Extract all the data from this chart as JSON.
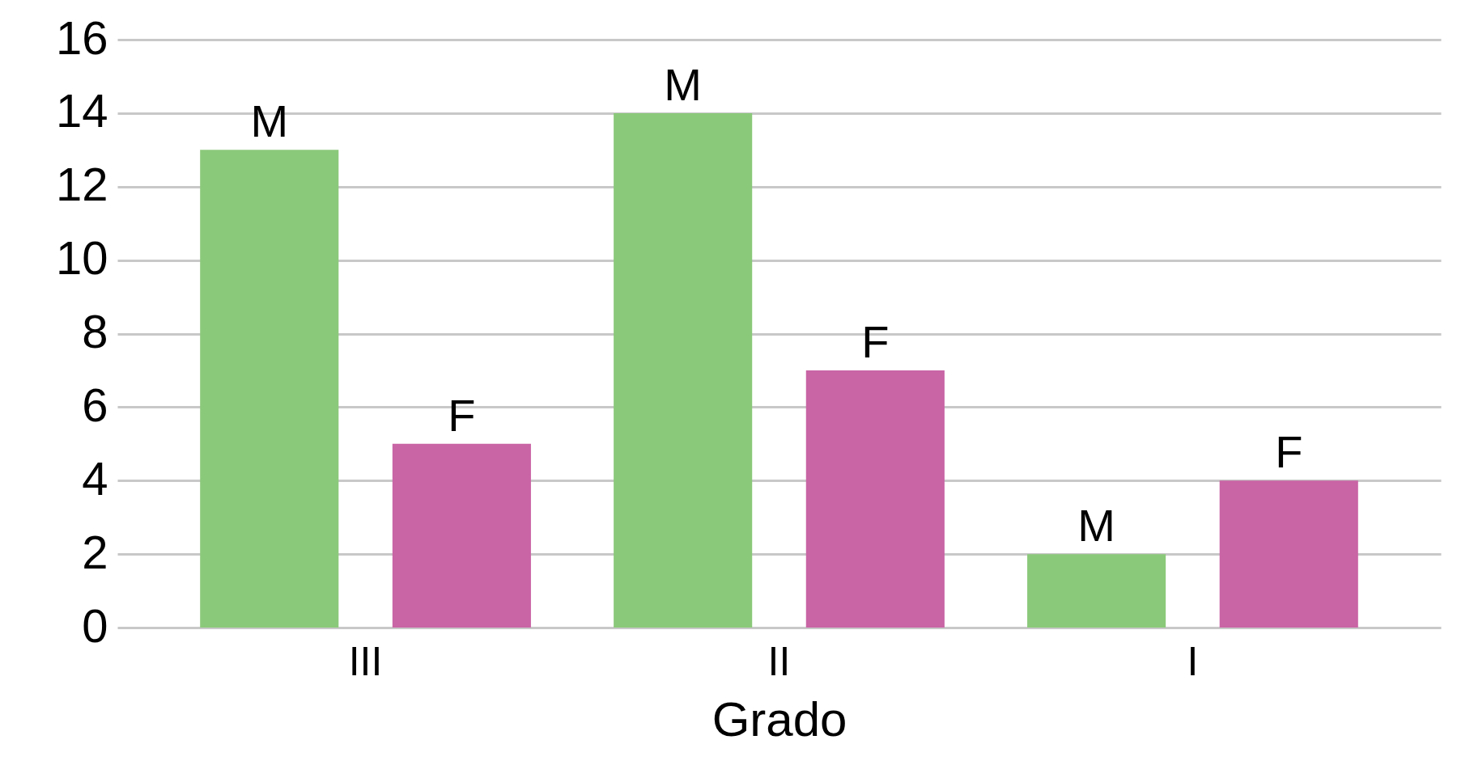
{
  "chart_data": {
    "type": "bar",
    "xlabel": "Grado",
    "categories": [
      "III",
      "II",
      "I"
    ],
    "series": [
      {
        "name": "M",
        "color": "#8bc97a",
        "values": [
          13,
          14,
          2
        ]
      },
      {
        "name": "F",
        "color": "#c964a5",
        "values": [
          5,
          7,
          4
        ]
      }
    ],
    "ylim": [
      0,
      16
    ],
    "yticks": [
      0,
      2,
      4,
      6,
      8,
      10,
      12,
      14,
      16
    ],
    "grid": "y",
    "legend": false
  }
}
